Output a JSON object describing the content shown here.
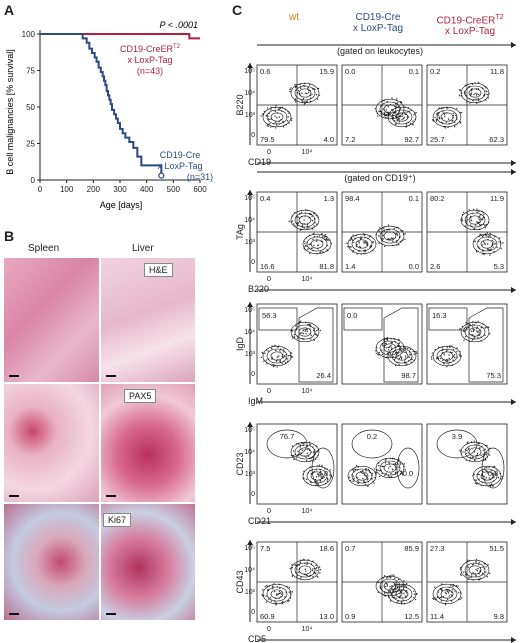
{
  "panelA": {
    "letter": "A",
    "chart_data": {
      "type": "line",
      "xlabel": "Age [days]",
      "ylabel": "B cell malignancies [% survival]",
      "xlim": [
        0,
        600
      ],
      "ylim": [
        0,
        100
      ],
      "xticks": [
        "0",
        "100",
        "200",
        "300",
        "400",
        "500",
        "600"
      ],
      "yticks": [
        "0",
        "25",
        "50",
        "75",
        "100"
      ],
      "pvalue": "P < .0001",
      "series": [
        {
          "name": "CD19-CreERT2 x LoxP-Tag (n=43)",
          "label_line1": "CD19-CreER",
          "label_sup": "T2",
          "label_line2": "x LoxP-Tag",
          "label_line3": "(n=43)",
          "color": "#b0223f",
          "x": [
            0,
            560,
            560,
            600
          ],
          "y": [
            100,
            100,
            97,
            97
          ]
        },
        {
          "name": "CD19-Cre x LoxP-Tag (n=31)",
          "label_line1": "CD19-Cre",
          "label_line2": "x LoxP-Tag",
          "label_line3": "(n=31)",
          "color": "#2b4a86",
          "x": [
            0,
            150,
            160,
            175,
            185,
            195,
            205,
            212,
            220,
            228,
            235,
            240,
            245,
            250,
            255,
            260,
            265,
            270,
            278,
            285,
            292,
            300,
            310,
            320,
            335,
            350,
            365,
            380,
            455
          ],
          "y": [
            100,
            100,
            97,
            94,
            90,
            87,
            84,
            81,
            77,
            74,
            71,
            68,
            65,
            61,
            58,
            55,
            52,
            48,
            45,
            42,
            39,
            35,
            32,
            29,
            26,
            22,
            16,
            10,
            3
          ]
        }
      ]
    }
  },
  "panelB": {
    "letter": "B",
    "col_spleen": "Spleen",
    "col_liver": "Liver",
    "stains": [
      "H&E",
      "PAX5",
      "Ki67"
    ]
  },
  "panelC": {
    "letter": "C",
    "col_headers": [
      {
        "line1": "wt",
        "line2": "",
        "line3": "",
        "color": "#c8860d"
      },
      {
        "line1": "CD19-Cre",
        "line2": "x LoxP-Tag",
        "line3": "",
        "color": "#2b4a86"
      },
      {
        "line1": "CD19-CreER",
        "sup": "T2",
        "line2": "x LoxP-Tag",
        "color": "#b0223f"
      }
    ],
    "gate1": "(gated on leukocytes)",
    "gate2": "(gated on CD19⁺)",
    "rows": [
      {
        "ylabel": "B220",
        "xlabel": "CD19",
        "plots": [
          [
            "0.6",
            "15.9",
            "79.5",
            "4.0"
          ],
          [
            "0.0",
            "0.1",
            "7.2",
            "92.7"
          ],
          [
            "0.2",
            "11.8",
            "25.7",
            "62.3"
          ]
        ]
      },
      {
        "ylabel": "TAg",
        "xlabel": "B220",
        "plots": [
          [
            "0.4",
            "1.3",
            "16.6",
            "81.8"
          ],
          [
            "98.4",
            "0.1",
            "1.4",
            "0.0"
          ],
          [
            "80.2",
            "11.9",
            "2.6",
            "5.3"
          ]
        ]
      },
      {
        "ylabel": "IgD",
        "xlabel": "IgM",
        "plots": [
          [
            "56.3",
            "26.4"
          ],
          [
            "0.0",
            "98.7"
          ],
          [
            "16.3",
            "75.3"
          ]
        ]
      },
      {
        "ylabel": "CD23",
        "xlabel": "CD21",
        "plots": [
          [
            "76.7",
            "4.8"
          ],
          [
            "0.2",
            "0.0"
          ],
          [
            "3.9",
            "0.8"
          ]
        ]
      },
      {
        "ylabel": "CD43",
        "xlabel": "CD5",
        "plots": [
          [
            "7.5",
            "18.6",
            "60.9",
            "13.0"
          ],
          [
            "0.7",
            "85.9",
            "0.9",
            "12.5"
          ],
          [
            "27.3",
            "51.5",
            "11.4",
            "9.8"
          ]
        ]
      }
    ],
    "tick_labels": {
      "y_top": "10⁵",
      "y_mid": "10⁴",
      "y_low": "10³",
      "y_zero": "0",
      "x_zero": "0",
      "x_mid": "10⁴"
    }
  }
}
